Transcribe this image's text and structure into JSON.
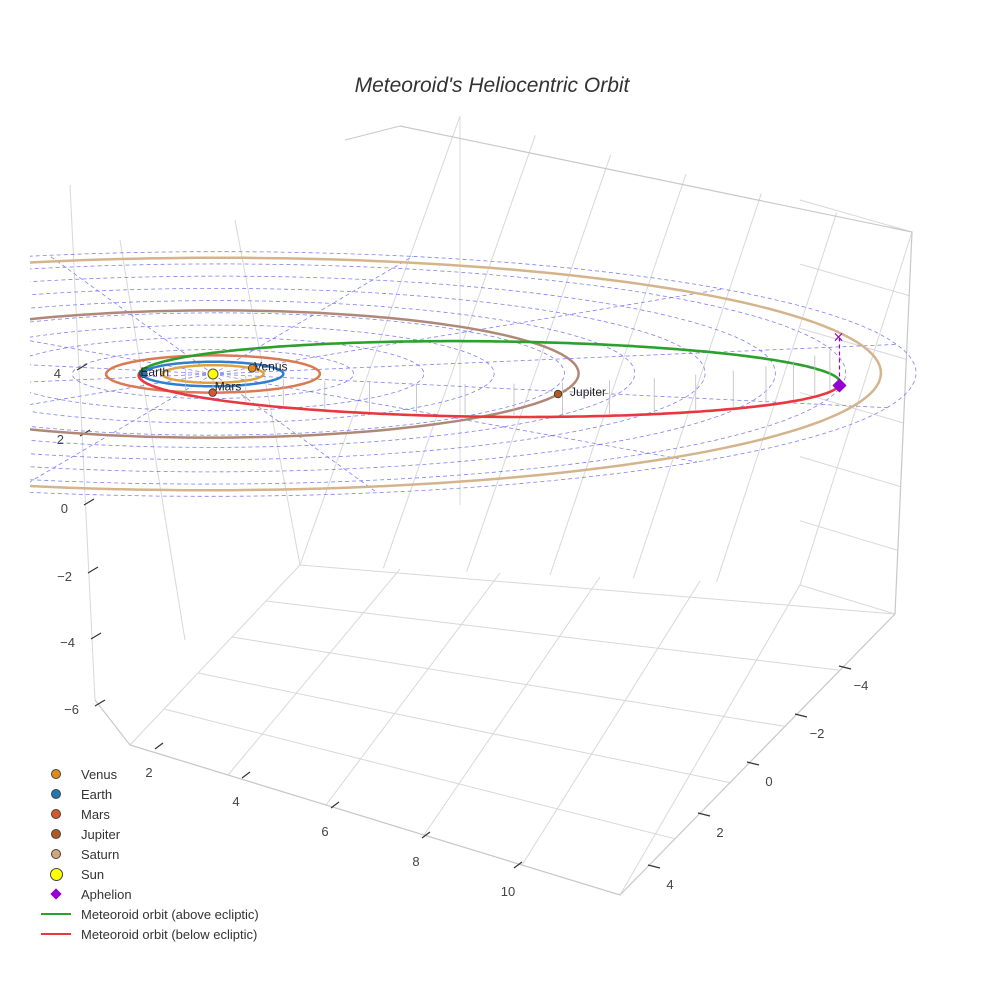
{
  "chart_data": {
    "type": "scatter",
    "title": "Meteoroid's Heliocentric Orbit",
    "dimensions": "3d",
    "axes": {
      "x": {
        "ticks": [
          2,
          4,
          6,
          8,
          10
        ]
      },
      "y": {
        "ticks": [
          -4,
          -2,
          0,
          2,
          4
        ]
      },
      "z": {
        "ticks": [
          -6,
          -4,
          -2,
          0,
          2,
          4
        ]
      }
    },
    "grid": true,
    "ecliptic_grid": {
      "style": "dashed",
      "color": "#6a6af0",
      "ring_spacing_au": 1
    },
    "planets": [
      {
        "name": "Venus",
        "orbit_radius_au": 0.72,
        "position": [
          0.05,
          -0.72,
          0
        ],
        "color": "#e08a1a",
        "orbit_color": "#e0a040"
      },
      {
        "name": "Earth",
        "orbit_radius_au": 1.0,
        "position": [
          -0.7,
          0.7,
          0
        ],
        "color": "#1f77b4",
        "orbit_color": "#2e7fcf"
      },
      {
        "name": "Mars",
        "orbit_radius_au": 1.52,
        "position": [
          1.1,
          1.05,
          0
        ],
        "color": "#d45a2a",
        "orbit_color": "#d97a55"
      },
      {
        "name": "Jupiter",
        "orbit_radius_au": 5.2,
        "position": [
          4.6,
          -2.4,
          0
        ],
        "color": "#b05a20",
        "orbit_color": "#b08878"
      },
      {
        "name": "Saturn",
        "orbit_radius_au": 9.5,
        "position": null,
        "color": "#d2a679",
        "orbit_color": "#d4b48c"
      }
    ],
    "sun": {
      "name": "Sun",
      "position": [
        0,
        0,
        0
      ],
      "color": "#ffff00"
    },
    "meteoroid_orbit": {
      "semi_major_axis_au": 5.01,
      "eccentricity": 0.79,
      "inclination_deg": 4,
      "perihelion_angle_deg": 140,
      "above_color": "#2ca02c",
      "below_color": "#e8383d"
    },
    "aphelion": {
      "name": "Aphelion",
      "color": "#9400d3"
    },
    "series": [
      {
        "name": "Venus"
      },
      {
        "name": "Earth"
      },
      {
        "name": "Mars"
      },
      {
        "name": "Jupiter"
      },
      {
        "name": "Saturn"
      },
      {
        "name": "Sun"
      },
      {
        "name": "Aphelion"
      },
      {
        "name": "Meteoroid orbit (above ecliptic)"
      },
      {
        "name": "Meteoroid orbit (below ecliptic)"
      }
    ],
    "legend": {
      "placement": "bottom-left",
      "items": [
        {
          "label": "Venus",
          "symbol": "circle",
          "color": "#e08a1a"
        },
        {
          "label": "Earth",
          "symbol": "circle",
          "color": "#1f77b4"
        },
        {
          "label": "Mars",
          "symbol": "circle",
          "color": "#d45a2a"
        },
        {
          "label": "Jupiter",
          "symbol": "circle",
          "color": "#b05a20"
        },
        {
          "label": "Saturn",
          "symbol": "circle",
          "color": "#d2a679"
        },
        {
          "label": "Sun",
          "symbol": "circle-large",
          "color": "#ffff00"
        },
        {
          "label": "Aphelion",
          "symbol": "diamond",
          "color": "#9400d3"
        },
        {
          "label": "Meteoroid orbit (above ecliptic)",
          "symbol": "line",
          "color": "#2ca02c"
        },
        {
          "label": "Meteoroid orbit (below ecliptic)",
          "symbol": "line",
          "color": "#e8383d"
        }
      ]
    }
  }
}
